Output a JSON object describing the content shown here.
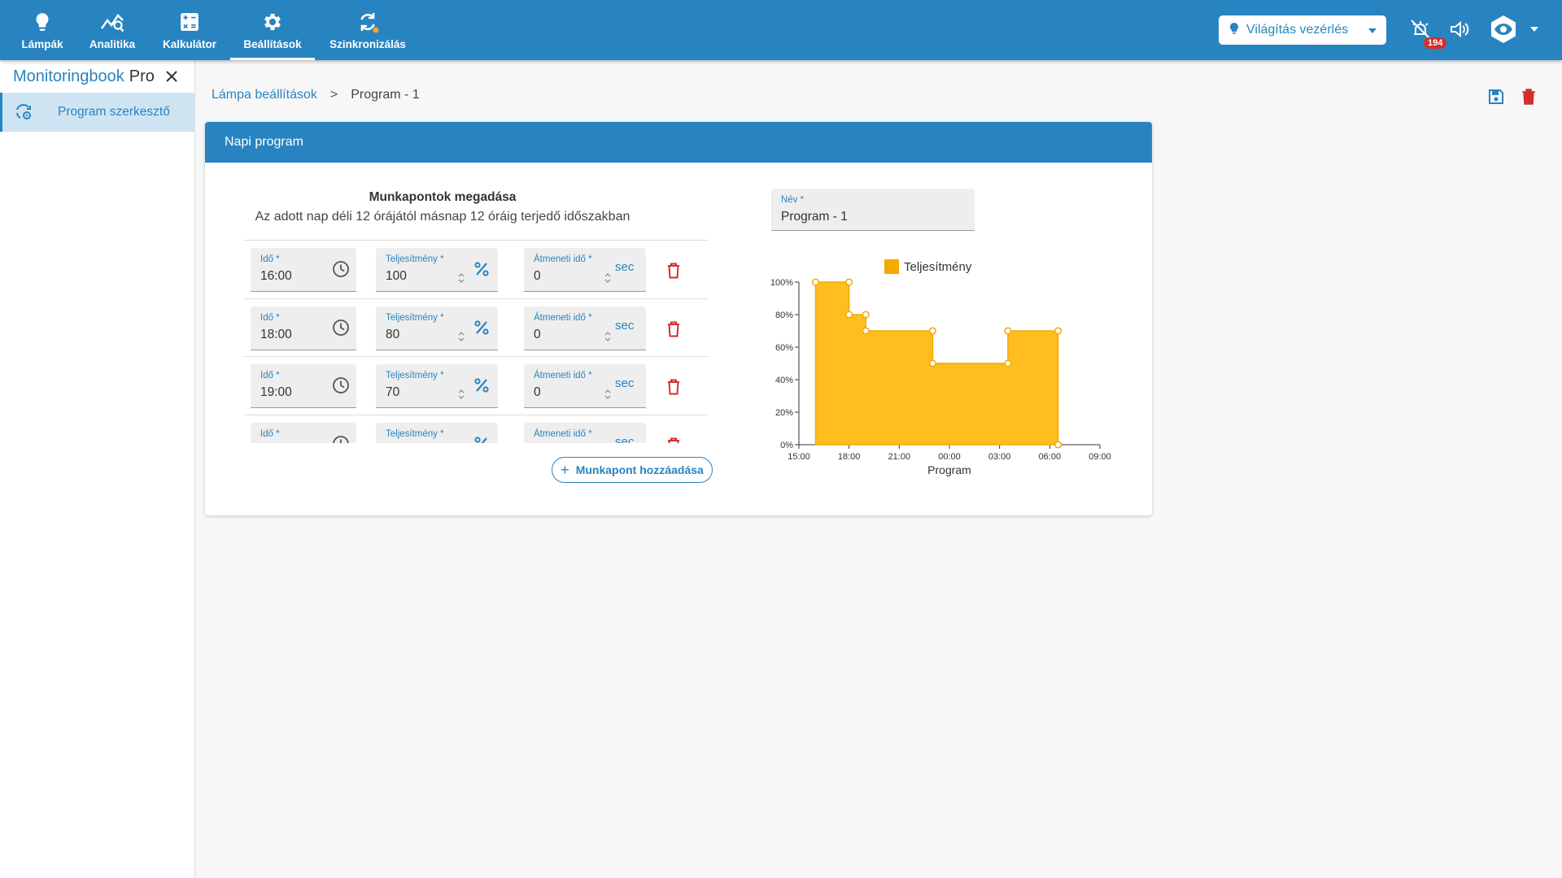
{
  "topnav": {
    "items": [
      {
        "label": "Lámpák",
        "icon": "lightbulb-icon"
      },
      {
        "label": "Analitika",
        "icon": "analytics-icon"
      },
      {
        "label": "Kalkulátor",
        "icon": "calculator-icon"
      },
      {
        "label": "Beállítások",
        "icon": "gear-icon",
        "active": true
      },
      {
        "label": "Szinkronizálás",
        "icon": "sync-icon"
      }
    ],
    "selector_label": "Világítás vezérlés",
    "alarm_count": "194"
  },
  "sidebar": {
    "title_a": "Monitoringbook",
    "title_b": "Pro",
    "items": [
      {
        "label": "Program szerkesztő",
        "icon": "program-settings-icon"
      }
    ]
  },
  "breadcrumb": {
    "link": "Lámpa beállítások",
    "separator": ">",
    "current": "Program - 1"
  },
  "card": {
    "title": "Napi program",
    "workpoints_title": "Munkapontok megadása",
    "workpoints_subtitle": "Az adott nap déli 12 órájától másnap 12 óráig terjedő időszakban",
    "rows": [
      {
        "time_label": "Idő *",
        "time": "16:00",
        "power_label": "Teljesítmény *",
        "power": "100",
        "trans_label": "Átmeneti idő *",
        "trans": "0",
        "unit": "sec"
      },
      {
        "time_label": "Idő *",
        "time": "18:00",
        "power_label": "Teljesítmény *",
        "power": "80",
        "trans_label": "Átmeneti idő *",
        "trans": "0",
        "unit": "sec"
      },
      {
        "time_label": "Idő *",
        "time": "19:00",
        "power_label": "Teljesítmény *",
        "power": "70",
        "trans_label": "Átmeneti idő *",
        "trans": "0",
        "unit": "sec"
      },
      {
        "time_label": "Idő *",
        "time": "",
        "power_label": "Teljesítmény *",
        "power": "",
        "trans_label": "Átmeneti idő *",
        "trans": "",
        "unit": "sec"
      }
    ],
    "add_button": "Munkapont hozzáadása",
    "name_label": "Név *",
    "name_value": "Program - 1"
  },
  "colors": {
    "primary": "#2884c0",
    "series_fill": "#ffbd1f",
    "series_stroke": "#f2a900",
    "danger": "#d32f2f"
  },
  "chart_data": {
    "type": "area",
    "legend": [
      "Teljesítmény"
    ],
    "legend_position": "top",
    "xlabel": "Program",
    "ylabel": "",
    "x_ticks": [
      "15:00",
      "18:00",
      "21:00",
      "00:00",
      "03:00",
      "06:00",
      "09:00"
    ],
    "y_ticks": [
      "0%",
      "20%",
      "40%",
      "60%",
      "80%",
      "100%"
    ],
    "xlim": [
      0,
      18
    ],
    "ylim": [
      0,
      100
    ],
    "x_unit": "hours since 15:00",
    "series": [
      {
        "name": "Teljesítmény",
        "points": [
          {
            "x": 1.0,
            "y": 100
          },
          {
            "x": 3.0,
            "y": 100
          },
          {
            "x": 3.0,
            "y": 80
          },
          {
            "x": 4.0,
            "y": 80
          },
          {
            "x": 4.0,
            "y": 70
          },
          {
            "x": 8.0,
            "y": 70
          },
          {
            "x": 8.0,
            "y": 50
          },
          {
            "x": 12.5,
            "y": 50
          },
          {
            "x": 12.5,
            "y": 70
          },
          {
            "x": 15.5,
            "y": 70
          },
          {
            "x": 15.5,
            "y": 0
          }
        ]
      }
    ]
  }
}
